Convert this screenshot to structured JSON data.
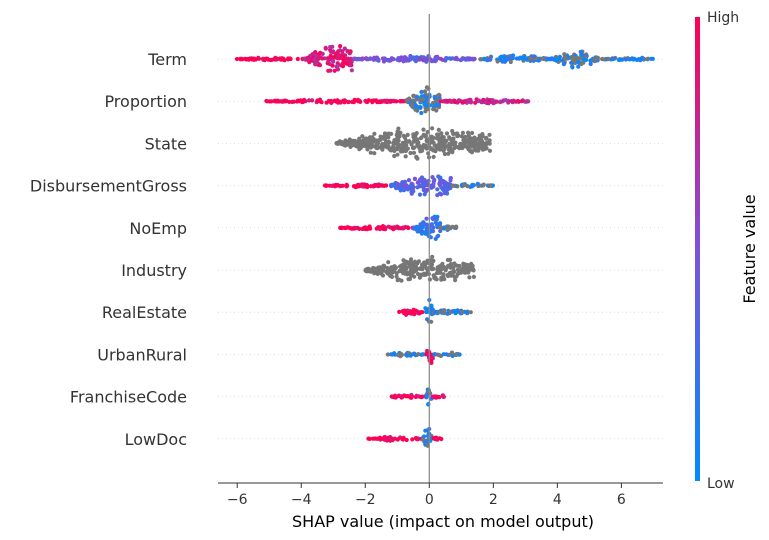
{
  "chart_data": {
    "type": "scatter",
    "subtype": "shap-beeswarm",
    "xlabel": "SHAP value (impact on model output)",
    "xlim": [
      -6.6,
      7.3
    ],
    "x_ticks": [
      -6,
      -4,
      -2,
      0,
      2,
      4,
      6
    ],
    "x_tick_labels": [
      "−6",
      "−4",
      "−2",
      "0",
      "2",
      "4",
      "6"
    ],
    "grid": false,
    "colorbar": {
      "label": "Feature value",
      "high_label": "High",
      "low_label": "Low",
      "low_color": "#008bfb",
      "mid_color": "#7c52d9",
      "high_color": "#ff0052"
    },
    "neutral_color": "#777777",
    "features": [
      {
        "name": "Term",
        "segments": [
          {
            "x0": -6.1,
            "x1": -3.9,
            "h": 0.1,
            "c": 1.0
          },
          {
            "x0": -3.9,
            "x1": -2.4,
            "h": 0.85,
            "c": 0.85,
            "peak": -2.8
          },
          {
            "x0": -2.4,
            "x1": 1.5,
            "h": 0.22,
            "c": 0.45
          },
          {
            "x0": 1.5,
            "x1": 3.8,
            "h": 0.25,
            "c": 0.1
          },
          {
            "x0": 3.8,
            "x1": 5.3,
            "h": 0.55,
            "c": 0.0,
            "peak": 4.6
          },
          {
            "x0": 5.3,
            "x1": 7.0,
            "h": 0.12,
            "c": 0.0
          }
        ]
      },
      {
        "name": "Proportion",
        "segments": [
          {
            "x0": -5.1,
            "x1": -0.7,
            "h": 0.12,
            "c": 1.0
          },
          {
            "x0": -0.7,
            "x1": 0.35,
            "h": 0.95,
            "c": 0.0,
            "peak": -0.1
          },
          {
            "x0": 0.35,
            "x1": 3.2,
            "h": 0.16,
            "c": 0.8
          }
        ]
      },
      {
        "name": "State",
        "segments": [
          {
            "x0": -2.9,
            "x1": 1.9,
            "h": 1.0,
            "c": -1,
            "peak": 0.0
          }
        ]
      },
      {
        "name": "DisbursementGross",
        "segments": [
          {
            "x0": -3.3,
            "x1": -1.2,
            "h": 0.12,
            "c": 1.0
          },
          {
            "x0": -1.2,
            "x1": 0.7,
            "h": 0.75,
            "c": 0.35,
            "peak": 0.1
          },
          {
            "x0": 0.7,
            "x1": 2.0,
            "h": 0.12,
            "c": 0.0
          }
        ]
      },
      {
        "name": "NoEmp",
        "segments": [
          {
            "x0": -2.8,
            "x1": -0.5,
            "h": 0.12,
            "c": 1.0
          },
          {
            "x0": -0.5,
            "x1": 0.35,
            "h": 0.8,
            "c": 0.2,
            "peak": 0.1
          },
          {
            "x0": 0.35,
            "x1": 1.0,
            "h": 0.14,
            "c": 0.0
          }
        ]
      },
      {
        "name": "Industry",
        "segments": [
          {
            "x0": -2.0,
            "x1": 1.4,
            "h": 0.85,
            "c": -1,
            "peak": 0.0
          }
        ]
      },
      {
        "name": "RealEstate",
        "segments": [
          {
            "x0": -1.0,
            "x1": -0.2,
            "h": 0.2,
            "c": 1.0
          },
          {
            "x0": -0.15,
            "x1": 0.15,
            "h": 0.8,
            "c": 0.0
          },
          {
            "x0": 0.15,
            "x1": 1.3,
            "h": 0.2,
            "c": 0.0
          }
        ]
      },
      {
        "name": "UrbanRural",
        "segments": [
          {
            "x0": -1.3,
            "x1": -0.1,
            "h": 0.14,
            "c": 0.0
          },
          {
            "x0": -0.1,
            "x1": 0.15,
            "h": 0.75,
            "c": 1.0
          },
          {
            "x0": 0.15,
            "x1": 0.95,
            "h": 0.14,
            "c": 0.0
          }
        ]
      },
      {
        "name": "FranchiseCode",
        "segments": [
          {
            "x0": -1.2,
            "x1": -0.1,
            "h": 0.14,
            "c": 1.0
          },
          {
            "x0": -0.1,
            "x1": 0.1,
            "h": 0.8,
            "c": 0.0
          },
          {
            "x0": 0.1,
            "x1": 0.5,
            "h": 0.14,
            "c": 1.0
          }
        ]
      },
      {
        "name": "LowDoc",
        "segments": [
          {
            "x0": -1.9,
            "x1": -0.2,
            "h": 0.14,
            "c": 1.0
          },
          {
            "x0": -0.2,
            "x1": 0.1,
            "h": 0.8,
            "c": 0.0
          },
          {
            "x0": 0.1,
            "x1": 0.4,
            "h": 0.12,
            "c": 1.0
          }
        ]
      }
    ]
  }
}
